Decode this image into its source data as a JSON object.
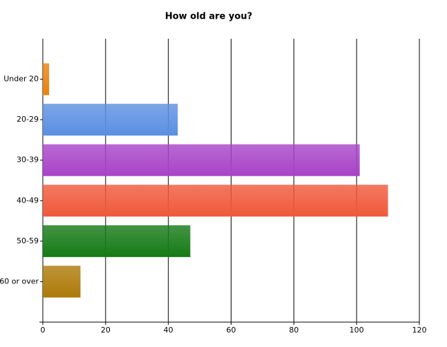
{
  "chart_data": {
    "type": "barh",
    "title": "How old are you?",
    "categories": [
      "Under 20",
      "20-29",
      "30-39",
      "40-49",
      "50-59",
      "60 or over"
    ],
    "values": [
      2,
      43,
      101,
      110,
      47,
      12
    ],
    "colors": [
      "#e8820c",
      "#5b8fe2",
      "#a843c8",
      "#f0583a",
      "#157a15",
      "#ad7a08"
    ],
    "xlim": [
      0,
      120
    ],
    "xticks": [
      0,
      20,
      40,
      60,
      80,
      100,
      120
    ],
    "grid": true
  }
}
